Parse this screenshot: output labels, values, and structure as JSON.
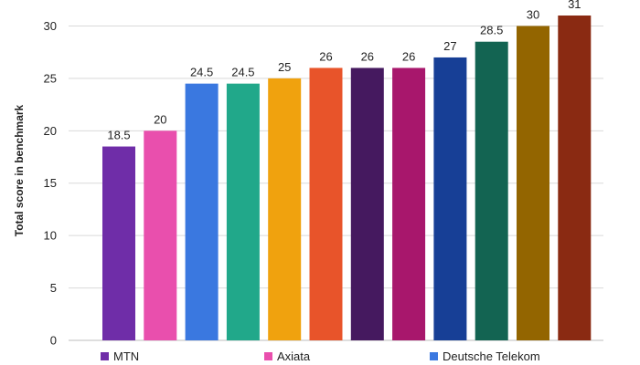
{
  "chart_data": {
    "type": "bar",
    "title": "",
    "xlabel": "",
    "ylabel": "Total score in benchmark",
    "ylim": [
      0,
      31
    ],
    "yticks": [
      0,
      5,
      10,
      15,
      20,
      25,
      30
    ],
    "grid": true,
    "legend_placement": "bottom",
    "bars": [
      {
        "value": 18.5,
        "color": "#6f2da8"
      },
      {
        "value": 20,
        "color": "#e94fad"
      },
      {
        "value": 24.5,
        "color": "#3a78e0"
      },
      {
        "value": 24.5,
        "color": "#21a88a"
      },
      {
        "value": 25,
        "color": "#f0a20e"
      },
      {
        "value": 26,
        "color": "#e8542a"
      },
      {
        "value": 26,
        "color": "#45195f"
      },
      {
        "value": 26,
        "color": "#a8176c"
      },
      {
        "value": 27,
        "color": "#173f96"
      },
      {
        "value": 28.5,
        "color": "#136452"
      },
      {
        "value": 30,
        "color": "#936500"
      },
      {
        "value": 31,
        "color": "#8a2a12"
      }
    ],
    "legend": [
      {
        "name": "MTN",
        "color": "#6f2da8"
      },
      {
        "name": "Axiata",
        "color": "#e94fad"
      },
      {
        "name": "Deutsche Telekom",
        "color": "#3a78e0"
      }
    ]
  }
}
